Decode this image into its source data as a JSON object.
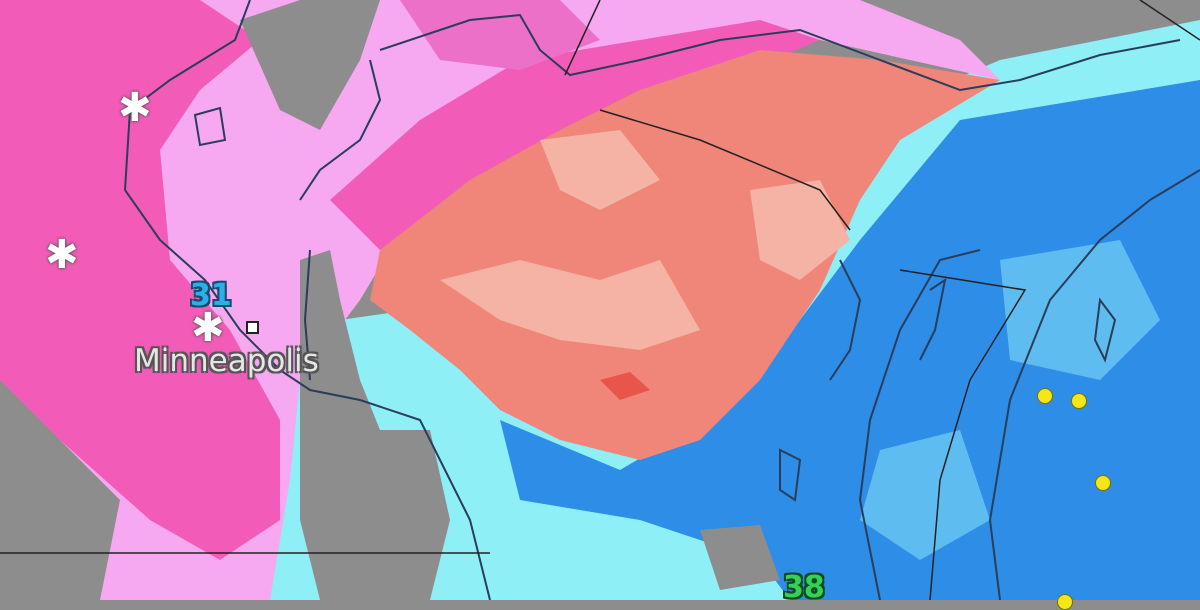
{
  "map": {
    "city_label": "Minneapolis",
    "temperature_labels": [
      {
        "value": "31",
        "color": "#2ab0e8"
      },
      {
        "value": "38",
        "color": "#34d058"
      }
    ],
    "precip_colors": {
      "heavy_snow": "#f25cb8",
      "light_snow": "#f6a8f0",
      "mixed": "#ef8679",
      "light_mixed": "#f4b3a4",
      "rain": "#2e8de6",
      "light_rain": "#8feff6",
      "no_precip": "#8d8d8d"
    },
    "icons": [
      "snowflake-icon",
      "city-marker-icon",
      "lightning-dot-icon"
    ]
  }
}
